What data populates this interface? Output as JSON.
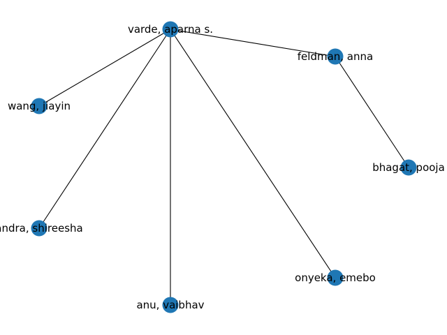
{
  "colors": {
    "node": "#1f77b4",
    "edge": "#000000",
    "label": "#000000",
    "background": "#ffffff"
  },
  "nodes": [
    {
      "id": "varde",
      "label": "varde, aparna s."
    },
    {
      "id": "feldman",
      "label": "feldman, anna"
    },
    {
      "id": "wang",
      "label": "wang, jiayin"
    },
    {
      "id": "bhagat",
      "label": "bhagat, pooja"
    },
    {
      "id": "chandra",
      "label": "andra, shireesha"
    },
    {
      "id": "onyeka",
      "label": "onyeka, emebo"
    },
    {
      "id": "anu",
      "label": "anu, vaibhav"
    }
  ],
  "edges": [
    {
      "source": "varde",
      "target": "feldman"
    },
    {
      "source": "varde",
      "target": "wang"
    },
    {
      "source": "varde",
      "target": "chandra"
    },
    {
      "source": "varde",
      "target": "anu"
    },
    {
      "source": "varde",
      "target": "onyeka"
    },
    {
      "source": "feldman",
      "target": "bhagat"
    }
  ]
}
